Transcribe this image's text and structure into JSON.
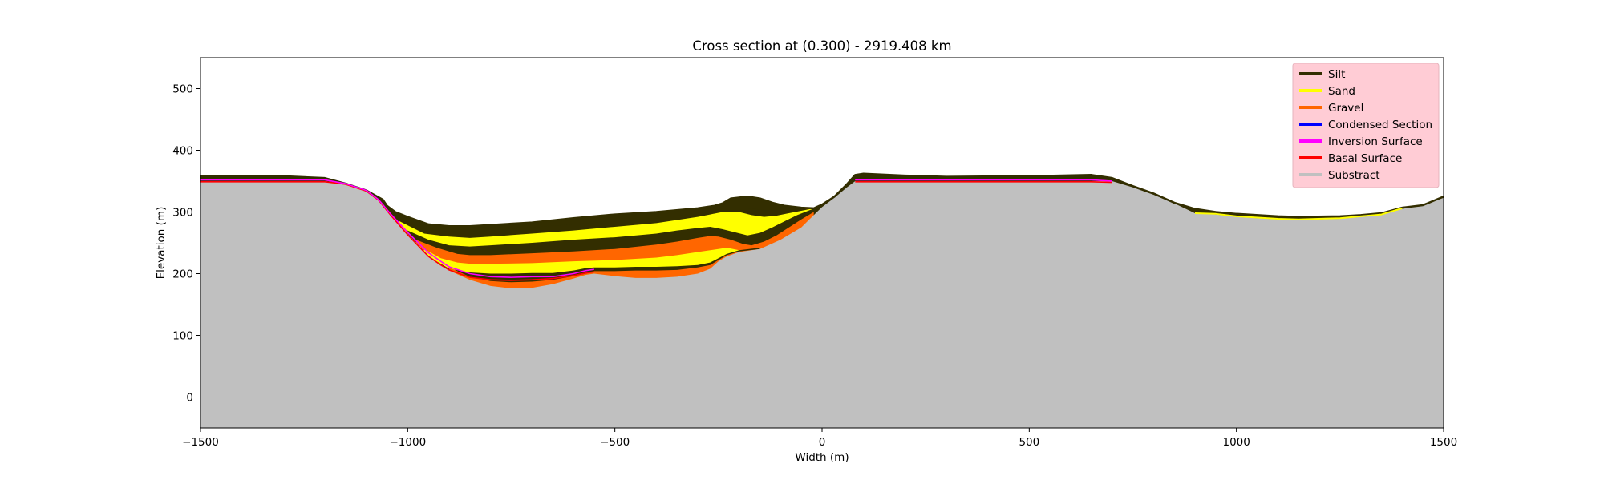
{
  "chart_data": {
    "type": "area",
    "title": "Cross section at (0.300) - 2919.408 km",
    "xlabel": "Width (m)",
    "ylabel": "Elevation (m)",
    "xlim": [
      -1500,
      1500
    ],
    "ylim": [
      -50,
      550
    ],
    "xticks": [
      -1500,
      -1000,
      -500,
      0,
      500,
      1000,
      1500
    ],
    "xtick_labels": [
      "−1500",
      "−1000",
      "−500",
      "0",
      "500",
      "1000",
      "1500"
    ],
    "yticks": [
      0,
      100,
      200,
      300,
      400,
      500
    ],
    "ytick_labels": [
      "0",
      "100",
      "200",
      "300",
      "400",
      "500"
    ],
    "grid": false,
    "legend_position": "top-right",
    "legend": [
      {
        "label": "Silt",
        "color": "#332e00"
      },
      {
        "label": "Sand",
        "color": "#ffff00"
      },
      {
        "label": "Gravel",
        "color": "#ff6600"
      },
      {
        "label": "Condensed Section",
        "color": "#0000ff"
      },
      {
        "label": "Inversion Surface",
        "color": "#ff00ff"
      },
      {
        "label": "Basal Surface",
        "color": "#ff0000"
      },
      {
        "label": "Substract",
        "color": "#c0c0c0"
      }
    ],
    "legend_background": "#ffccd5",
    "colors": {
      "silt": "#332e00",
      "sand": "#ffff00",
      "gravel": "#ff6600",
      "substract": "#c0c0c0",
      "inversion": "#ff00ff",
      "basal": "#ff0000"
    },
    "surfaces": {
      "topography": [
        [
          -1500,
          358
        ],
        [
          -1300,
          358
        ],
        [
          -1200,
          355
        ],
        [
          -1150,
          346
        ],
        [
          -1100,
          335
        ],
        [
          -1060,
          320
        ],
        [
          -1050,
          310
        ],
        [
          -1030,
          300
        ],
        [
          -1000,
          292
        ],
        [
          -950,
          280
        ],
        [
          -900,
          277
        ],
        [
          -850,
          277
        ],
        [
          -700,
          283
        ],
        [
          -600,
          290
        ],
        [
          -500,
          296
        ],
        [
          -400,
          300
        ],
        [
          -300,
          306
        ],
        [
          -260,
          310
        ],
        [
          -240,
          314
        ],
        [
          -220,
          322
        ],
        [
          -180,
          325
        ],
        [
          -150,
          322
        ],
        [
          -120,
          315
        ],
        [
          -90,
          310
        ],
        [
          -50,
          307
        ],
        [
          -20,
          306
        ],
        [
          0,
          312
        ],
        [
          30,
          325
        ],
        [
          60,
          345
        ],
        [
          80,
          360
        ],
        [
          100,
          362
        ],
        [
          200,
          359
        ],
        [
          300,
          357
        ],
        [
          500,
          358
        ],
        [
          650,
          360
        ],
        [
          700,
          355
        ],
        [
          750,
          342
        ],
        [
          800,
          330
        ],
        [
          850,
          315
        ],
        [
          900,
          305
        ],
        [
          950,
          300
        ],
        [
          1000,
          297
        ],
        [
          1100,
          293
        ],
        [
          1150,
          292
        ],
        [
          1250,
          293
        ],
        [
          1300,
          295
        ],
        [
          1350,
          298
        ],
        [
          1400,
          307
        ],
        [
          1450,
          311
        ],
        [
          1500,
          325
        ]
      ],
      "substract_top": [
        [
          -1500,
          350
        ],
        [
          -1300,
          350
        ],
        [
          -1200,
          350
        ],
        [
          -1150,
          346
        ],
        [
          -1100,
          335
        ],
        [
          -1070,
          320
        ],
        [
          -1040,
          295
        ],
        [
          -1000,
          265
        ],
        [
          -950,
          230
        ],
        [
          -900,
          205
        ],
        [
          -850,
          190
        ],
        [
          -800,
          180
        ],
        [
          -750,
          176
        ],
        [
          -700,
          177
        ],
        [
          -650,
          183
        ],
        [
          -600,
          192
        ],
        [
          -570,
          198
        ],
        [
          -550,
          200
        ],
        [
          -500,
          196
        ],
        [
          -450,
          193
        ],
        [
          -400,
          193
        ],
        [
          -350,
          195
        ],
        [
          -300,
          200
        ],
        [
          -270,
          208
        ],
        [
          -250,
          220
        ],
        [
          -230,
          228
        ],
        [
          -200,
          235
        ],
        [
          -150,
          240
        ],
        [
          -100,
          255
        ],
        [
          -50,
          275
        ],
        [
          -20,
          295
        ],
        [
          0,
          308
        ],
        [
          30,
          323
        ],
        [
          60,
          340
        ],
        [
          80,
          350
        ],
        [
          200,
          350
        ],
        [
          400,
          350
        ],
        [
          650,
          350
        ],
        [
          700,
          350
        ],
        [
          750,
          340
        ],
        [
          800,
          328
        ],
        [
          850,
          314
        ],
        [
          900,
          298
        ],
        [
          950,
          296
        ],
        [
          1000,
          292
        ],
        [
          1100,
          288
        ],
        [
          1150,
          287
        ],
        [
          1250,
          289
        ],
        [
          1300,
          292
        ],
        [
          1350,
          295
        ],
        [
          1400,
          305
        ],
        [
          1450,
          311
        ],
        [
          1500,
          323
        ]
      ],
      "gravel_lower_top": [
        [
          -900,
          210
        ],
        [
          -850,
          195
        ],
        [
          -800,
          188
        ],
        [
          -750,
          186
        ],
        [
          -700,
          187
        ],
        [
          -650,
          190
        ],
        [
          -600,
          196
        ],
        [
          -570,
          200
        ],
        [
          -550,
          204
        ],
        [
          -500,
          204
        ],
        [
          -450,
          205
        ],
        [
          -400,
          205
        ],
        [
          -350,
          206
        ],
        [
          -300,
          210
        ],
        [
          -270,
          214
        ],
        [
          -250,
          222
        ],
        [
          -230,
          230
        ],
        [
          -200,
          236
        ],
        [
          -150,
          240
        ]
      ],
      "silt_lower_top": [
        [
          -930,
          220
        ],
        [
          -900,
          208
        ],
        [
          -850,
          202
        ],
        [
          -800,
          200
        ],
        [
          -750,
          200
        ],
        [
          -700,
          201
        ],
        [
          -650,
          201
        ],
        [
          -600,
          205
        ],
        [
          -570,
          209
        ],
        [
          -550,
          210
        ],
        [
          -500,
          210
        ],
        [
          -450,
          211
        ],
        [
          -400,
          211
        ],
        [
          -350,
          212
        ],
        [
          -300,
          214
        ],
        [
          -270,
          218
        ],
        [
          -250,
          225
        ],
        [
          -230,
          232
        ],
        [
          -200,
          238
        ],
        [
          -150,
          242
        ]
      ],
      "sand_mid_top": [
        [
          -960,
          240
        ],
        [
          -920,
          225
        ],
        [
          -880,
          218
        ],
        [
          -850,
          216
        ],
        [
          -800,
          216
        ],
        [
          -700,
          217
        ],
        [
          -600,
          220
        ],
        [
          -500,
          222
        ],
        [
          -400,
          226
        ],
        [
          -350,
          230
        ],
        [
          -300,
          235
        ],
        [
          -270,
          238
        ],
        [
          -250,
          240
        ],
        [
          -230,
          242
        ],
        [
          -200,
          238
        ],
        [
          -170,
          238
        ],
        [
          -150,
          240
        ]
      ],
      "gravel_mid_top": [
        [
          -980,
          255
        ],
        [
          -930,
          242
        ],
        [
          -880,
          232
        ],
        [
          -850,
          230
        ],
        [
          -800,
          230
        ],
        [
          -700,
          233
        ],
        [
          -600,
          236
        ],
        [
          -500,
          240
        ],
        [
          -400,
          247
        ],
        [
          -350,
          252
        ],
        [
          -300,
          258
        ],
        [
          -270,
          261
        ],
        [
          -250,
          260
        ],
        [
          -220,
          255
        ],
        [
          -190,
          248
        ],
        [
          -170,
          246
        ],
        [
          -140,
          252
        ],
        [
          -110,
          262
        ],
        [
          -80,
          275
        ],
        [
          -50,
          288
        ],
        [
          -20,
          300
        ]
      ],
      "silt_mid_top": [
        [
          -1000,
          270
        ],
        [
          -950,
          255
        ],
        [
          -900,
          246
        ],
        [
          -850,
          244
        ],
        [
          -800,
          246
        ],
        [
          -700,
          250
        ],
        [
          -600,
          255
        ],
        [
          -500,
          259
        ],
        [
          -400,
          265
        ],
        [
          -350,
          270
        ],
        [
          -300,
          274
        ],
        [
          -270,
          276
        ],
        [
          -240,
          272
        ],
        [
          -210,
          267
        ],
        [
          -180,
          262
        ],
        [
          -150,
          266
        ],
        [
          -120,
          275
        ],
        [
          -90,
          285
        ],
        [
          -60,
          295
        ],
        [
          -30,
          303
        ],
        [
          -10,
          308
        ]
      ],
      "sand_upper_top": [
        [
          -1020,
          285
        ],
        [
          -960,
          265
        ],
        [
          -900,
          260
        ],
        [
          -850,
          258
        ],
        [
          -800,
          260
        ],
        [
          -700,
          265
        ],
        [
          -600,
          270
        ],
        [
          -500,
          276
        ],
        [
          -400,
          282
        ],
        [
          -350,
          287
        ],
        [
          -300,
          292
        ],
        [
          -270,
          296
        ],
        [
          -240,
          300
        ],
        [
          -200,
          300
        ],
        [
          -170,
          295
        ],
        [
          -140,
          292
        ],
        [
          -110,
          294
        ],
        [
          -80,
          298
        ],
        [
          -50,
          302
        ],
        [
          -20,
          306
        ]
      ],
      "gravel_upper_top": [
        [
          -1020,
          290
        ],
        [
          -960,
          270
        ],
        [
          -900,
          264
        ],
        [
          -850,
          262
        ],
        [
          -800,
          264
        ],
        [
          -700,
          269
        ],
        [
          -600,
          274
        ],
        [
          -500,
          280
        ],
        [
          -400,
          286
        ],
        [
          -350,
          290
        ],
        [
          -300,
          296
        ],
        [
          -270,
          300
        ],
        [
          -240,
          303
        ],
        [
          -200,
          304
        ],
        [
          -170,
          302
        ],
        [
          -140,
          299
        ],
        [
          -110,
          300
        ],
        [
          -80,
          302
        ],
        [
          -50,
          304
        ],
        [
          -20,
          306
        ]
      ],
      "silt_upper_top": [
        [
          -1035,
          295
        ],
        [
          -980,
          278
        ],
        [
          -930,
          270
        ],
        [
          -880,
          268
        ],
        [
          -850,
          268
        ],
        [
          -800,
          270
        ],
        [
          -700,
          275
        ],
        [
          -600,
          280
        ],
        [
          -500,
          285
        ],
        [
          -400,
          290
        ],
        [
          -350,
          294
        ],
        [
          -300,
          298
        ],
        [
          -270,
          300
        ],
        [
          -240,
          306
        ],
        [
          -220,
          307
        ],
        [
          -180,
          306
        ],
        [
          -150,
          304
        ],
        [
          -120,
          302
        ],
        [
          -90,
          302
        ],
        [
          -60,
          304
        ],
        [
          -30,
          305
        ]
      ],
      "rim_band_left": [
        [
          -1500,
          352
        ],
        [
          -1300,
          352
        ],
        [
          -1200,
          352
        ],
        [
          -1150,
          346
        ]
      ],
      "rim_band_right": [
        [
          80,
          352
        ],
        [
          200,
          352
        ],
        [
          400,
          352
        ],
        [
          650,
          352
        ],
        [
          700,
          350
        ]
      ],
      "inversion_surface": [
        [
          -1500,
          352
        ],
        [
          -1300,
          352
        ],
        [
          -1200,
          352
        ],
        [
          -1150,
          346
        ],
        [
          -1100,
          335
        ],
        [
          -1070,
          320
        ],
        [
          -1040,
          296
        ],
        [
          -1000,
          267
        ],
        [
          -950,
          234
        ],
        [
          -920,
          220
        ],
        [
          -900,
          211
        ],
        [
          -850,
          200
        ],
        [
          -800,
          195
        ],
        [
          -750,
          194
        ],
        [
          -700,
          195
        ],
        [
          -650,
          195
        ],
        [
          -600,
          200
        ],
        [
          -570,
          205
        ],
        [
          -550,
          207
        ]
      ],
      "basal_surface": [
        [
          -1500,
          349
        ],
        [
          -1300,
          349
        ],
        [
          -1200,
          349
        ],
        [
          -1150,
          345
        ],
        [
          -1100,
          334
        ],
        [
          -1070,
          319
        ],
        [
          -1040,
          294
        ],
        [
          -1000,
          263
        ],
        [
          -950,
          228
        ],
        [
          -920,
          214
        ],
        [
          -900,
          206
        ],
        [
          -850,
          194
        ],
        [
          -800,
          190
        ],
        [
          -750,
          189
        ],
        [
          -700,
          190
        ],
        [
          -650,
          192
        ],
        [
          -600,
          197
        ],
        [
          -570,
          201
        ],
        [
          -550,
          203
        ]
      ],
      "inversion_right": [
        [
          80,
          352
        ],
        [
          200,
          352
        ],
        [
          400,
          352
        ],
        [
          650,
          352
        ],
        [
          700,
          350
        ]
      ],
      "basal_right": [
        [
          80,
          349
        ],
        [
          200,
          349
        ],
        [
          400,
          349
        ],
        [
          650,
          349
        ],
        [
          700,
          348
        ]
      ],
      "sand_right_thin": [
        [
          900,
          298
        ],
        [
          950,
          297
        ],
        [
          1000,
          293
        ],
        [
          1100,
          289
        ],
        [
          1150,
          288
        ],
        [
          1250,
          290
        ],
        [
          1300,
          293
        ],
        [
          1350,
          296
        ],
        [
          1400,
          306
        ]
      ]
    }
  }
}
